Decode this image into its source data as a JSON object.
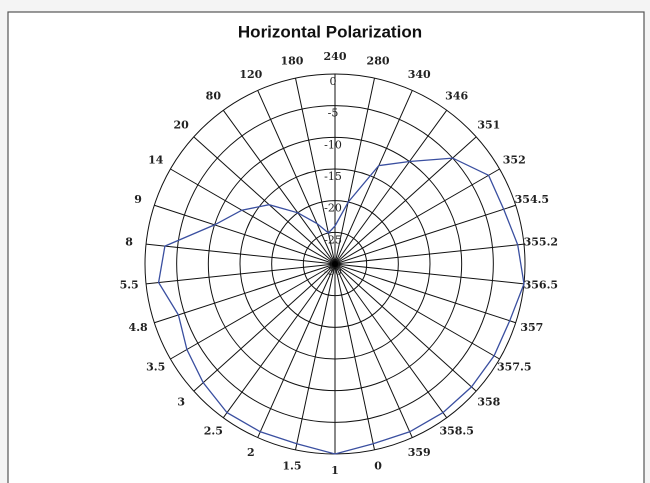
{
  "chart_data": {
    "type": "polar",
    "title": "Horizontal Polarization",
    "categories": [
      240,
      280,
      340,
      346,
      351,
      352,
      354.5,
      355.2,
      356.5,
      357,
      357.5,
      358,
      358.5,
      359,
      0,
      1,
      1.5,
      2,
      2.5,
      3,
      3.5,
      4.8,
      5.5,
      8,
      9,
      14,
      20,
      80,
      120,
      180
    ],
    "series": [
      {
        "color": "#3a4fa0",
        "values": [
          -24,
          -20,
          -13,
          -10,
          -5,
          -2,
          -2,
          -1,
          0,
          -1,
          -1,
          -1,
          -1,
          -1,
          -1,
          0,
          -1,
          -1,
          -1,
          -2,
          -3,
          -4,
          -2,
          -3,
          -10,
          -13,
          -16,
          -20,
          -23,
          -25
        ]
      }
    ],
    "rlim": [
      -30,
      0
    ],
    "rticks": [
      0,
      -5,
      -10,
      -15,
      -20,
      -25,
      -30
    ],
    "grid": true
  }
}
